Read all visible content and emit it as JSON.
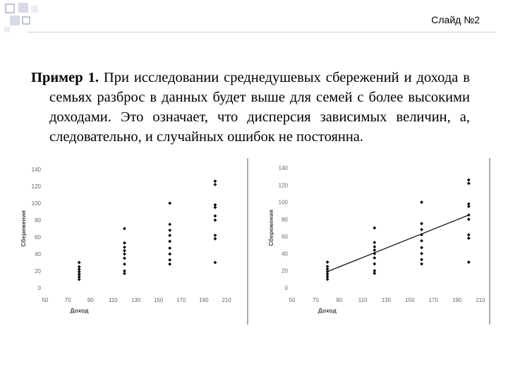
{
  "header": {
    "slide_label": "Слайд №2"
  },
  "text": {
    "bold": "Пример 1.",
    "body": " При исследовании среднедушевых сбережений и дохода в семьях разброс в данных будет выше для семей с более высокими доходами. Это означает, что дисперсия зависимых величин, а, следовательно, и случайных ошибок не постоянна."
  },
  "chart_data": [
    {
      "type": "scatter",
      "title": "",
      "xlabel": "Доход",
      "ylabel": "Сбережения",
      "xlim": [
        50,
        210
      ],
      "ylim": [
        0,
        140
      ],
      "xticks": [
        50,
        70,
        90,
        110,
        130,
        150,
        170,
        190,
        210
      ],
      "yticks": [
        0,
        20,
        40,
        60,
        80,
        100,
        120,
        140
      ],
      "grid": false,
      "points": [
        [
          80,
          10
        ],
        [
          80,
          13
        ],
        [
          80,
          16
        ],
        [
          80,
          19
        ],
        [
          80,
          22
        ],
        [
          80,
          25
        ],
        [
          80,
          30
        ],
        [
          120,
          17
        ],
        [
          120,
          20
        ],
        [
          120,
          28
        ],
        [
          120,
          35
        ],
        [
          120,
          40
        ],
        [
          120,
          44
        ],
        [
          120,
          48
        ],
        [
          120,
          53
        ],
        [
          120,
          70
        ],
        [
          160,
          28
        ],
        [
          160,
          33
        ],
        [
          160,
          40
        ],
        [
          160,
          47
        ],
        [
          160,
          55
        ],
        [
          160,
          62
        ],
        [
          160,
          68
        ],
        [
          160,
          75
        ],
        [
          160,
          100
        ],
        [
          200,
          30
        ],
        [
          200,
          58
        ],
        [
          200,
          62
        ],
        [
          200,
          80
        ],
        [
          200,
          85
        ],
        [
          200,
          95
        ],
        [
          200,
          98
        ],
        [
          200,
          122
        ],
        [
          200,
          126
        ]
      ]
    },
    {
      "type": "scatter",
      "title": "",
      "xlabel": "Доход",
      "ylabel": "Сбережения",
      "xlim": [
        50,
        210
      ],
      "ylim": [
        0,
        140
      ],
      "xticks": [
        50,
        70,
        90,
        110,
        130,
        150,
        170,
        190,
        210
      ],
      "yticks": [
        0,
        20,
        40,
        60,
        80,
        100,
        120,
        140
      ],
      "grid": false,
      "points": [
        [
          80,
          10
        ],
        [
          80,
          13
        ],
        [
          80,
          16
        ],
        [
          80,
          19
        ],
        [
          80,
          22
        ],
        [
          80,
          25
        ],
        [
          80,
          30
        ],
        [
          120,
          17
        ],
        [
          120,
          20
        ],
        [
          120,
          28
        ],
        [
          120,
          35
        ],
        [
          120,
          40
        ],
        [
          120,
          44
        ],
        [
          120,
          48
        ],
        [
          120,
          53
        ],
        [
          120,
          70
        ],
        [
          160,
          28
        ],
        [
          160,
          33
        ],
        [
          160,
          40
        ],
        [
          160,
          47
        ],
        [
          160,
          55
        ],
        [
          160,
          62
        ],
        [
          160,
          68
        ],
        [
          160,
          75
        ],
        [
          160,
          100
        ],
        [
          200,
          30
        ],
        [
          200,
          58
        ],
        [
          200,
          62
        ],
        [
          200,
          80
        ],
        [
          200,
          85
        ],
        [
          200,
          95
        ],
        [
          200,
          98
        ],
        [
          200,
          122
        ],
        [
          200,
          126
        ]
      ],
      "trendline": {
        "x": [
          80,
          200
        ],
        "y": [
          19,
          85
        ]
      }
    }
  ]
}
